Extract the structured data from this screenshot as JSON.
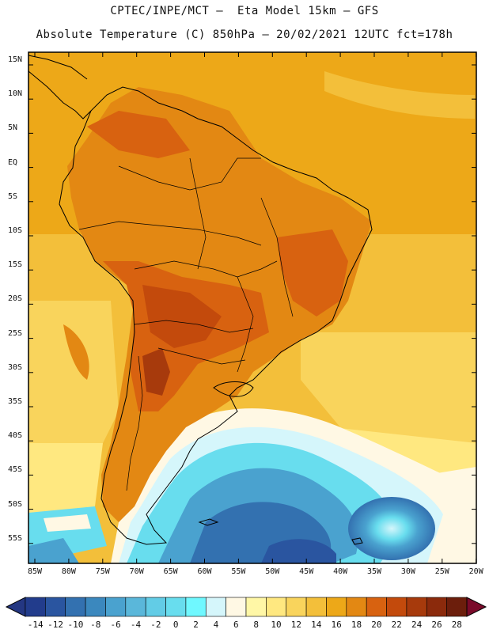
{
  "header": {
    "line1": "CPTEC/INPE/MCT –  Eta Model 15km – GFS",
    "line2": "Absolute Temperature (C) 850hPa – 20/02/2021 12UTC fct=178h"
  },
  "map": {
    "lat_labels": [
      "15N",
      "10N",
      "5N",
      "EQ",
      "5S",
      "10S",
      "15S",
      "20S",
      "25S",
      "30S",
      "35S",
      "40S",
      "45S",
      "50S",
      "55S"
    ],
    "lon_labels": [
      "85W",
      "80W",
      "75W",
      "70W",
      "65W",
      "60W",
      "55W",
      "50W",
      "45W",
      "40W",
      "35W",
      "30W",
      "25W",
      "20W"
    ]
  },
  "colorbar": {
    "ticks": [
      "-14",
      "-12",
      "-10",
      "-8",
      "-6",
      "-4",
      "-2",
      "0",
      "2",
      "4",
      "6",
      "8",
      "10",
      "12",
      "14",
      "16",
      "18",
      "20",
      "22",
      "24",
      "26",
      "28"
    ],
    "colors": [
      "#223c8c",
      "#2a55a0",
      "#3371b0",
      "#3b88be",
      "#4aa2cf",
      "#5ab7da",
      "#62cce6",
      "#68ddee",
      "#6ff8ff",
      "#d5f6fb",
      "#fff8e4",
      "#fff7a6",
      "#ffe880",
      "#f9d45c",
      "#f3bf3a",
      "#eda818",
      "#e38813",
      "#d86210",
      "#c34a0c",
      "#a73a0c",
      "#8b2a0c",
      "#6c1e0c"
    ],
    "under_color": "#243782",
    "over_color": "#7a0a2a"
  }
}
